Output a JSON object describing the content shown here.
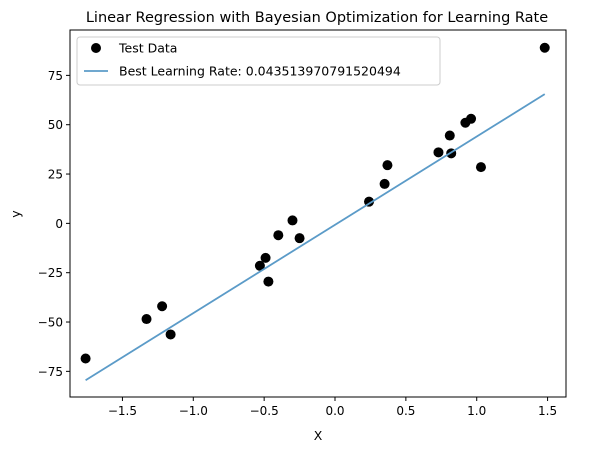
{
  "chart_data": {
    "type": "scatter",
    "title": "Linear Regression with Bayesian Optimization for Learning Rate",
    "xlabel": "X",
    "ylabel": "y",
    "xlim": [
      -1.87,
      1.63
    ],
    "ylim": [
      -88,
      98
    ],
    "xticks": [
      -1.5,
      -1.0,
      -0.5,
      0.0,
      0.5,
      1.0,
      1.5
    ],
    "xtick_labels": [
      "−1.5",
      "−1.0",
      "−0.5",
      "0.0",
      "0.5",
      "1.0",
      "1.5"
    ],
    "yticks": [
      -75,
      -50,
      -25,
      0,
      25,
      50,
      75
    ],
    "ytick_labels": [
      "−75",
      "−50",
      "−25",
      "0",
      "25",
      "50",
      "75"
    ],
    "grid": false,
    "legend_position": "top-left",
    "series": [
      {
        "name": "Test Data",
        "kind": "scatter",
        "color": "#000000",
        "points": [
          [
            -1.76,
            -68.5
          ],
          [
            -1.33,
            -48.5
          ],
          [
            -1.22,
            -42.0
          ],
          [
            -1.16,
            -56.3
          ],
          [
            -0.53,
            -21.5
          ],
          [
            -0.49,
            -17.5
          ],
          [
            -0.47,
            -29.5
          ],
          [
            -0.4,
            -6.0
          ],
          [
            -0.3,
            1.5
          ],
          [
            -0.25,
            -7.5
          ],
          [
            0.24,
            11.0
          ],
          [
            0.35,
            20.0
          ],
          [
            0.37,
            29.5
          ],
          [
            0.73,
            36.0
          ],
          [
            0.81,
            44.5
          ],
          [
            0.82,
            35.5
          ],
          [
            0.92,
            51.0
          ],
          [
            0.96,
            53.0
          ],
          [
            1.03,
            28.5
          ],
          [
            1.48,
            89.0
          ]
        ]
      },
      {
        "name": "Best Learning Rate: 0.043513970791520494",
        "kind": "line",
        "color": "#5b9bc8",
        "points": [
          [
            -1.76,
            -79.5
          ],
          [
            1.48,
            65.5
          ]
        ]
      }
    ]
  }
}
